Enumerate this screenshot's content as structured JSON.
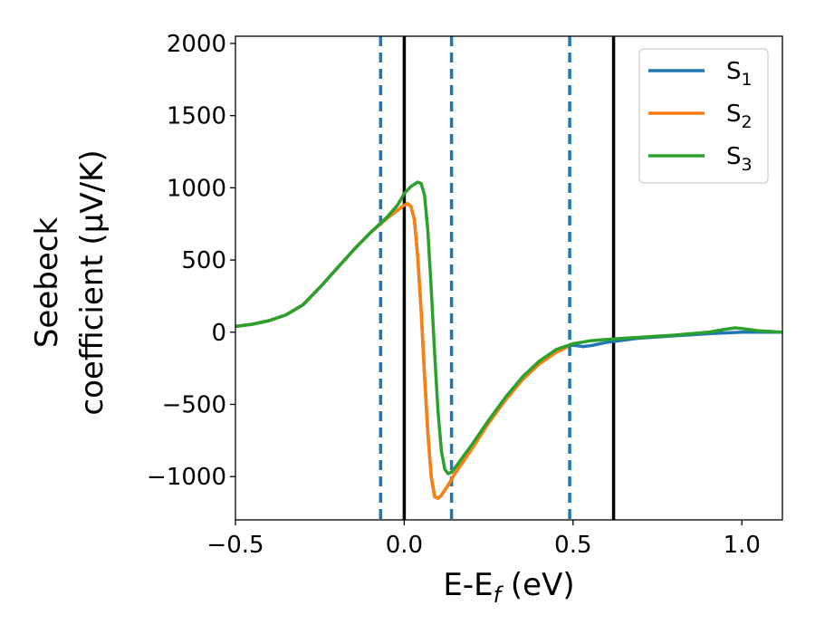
{
  "chart_data": {
    "type": "line",
    "xlabel": "E-E",
    "xlabel_sub": "f",
    "xlabel_unit": " (eV)",
    "ylabel_line1": "Seebeck",
    "ylabel_line2": "coefficient  (μV/K)",
    "xlim": [
      -0.5,
      1.12
    ],
    "ylim": [
      -1300,
      2050
    ],
    "xticks": [
      -0.5,
      0.0,
      0.5,
      1.0
    ],
    "xtick_labels": [
      "−0.5",
      "0.0",
      "0.5",
      "1.0"
    ],
    "yticks": [
      -1000,
      -500,
      0,
      500,
      1000,
      1500,
      2000
    ],
    "ytick_labels": [
      "−1000",
      "−500",
      "0",
      "500",
      "1000",
      "1500",
      "2000"
    ],
    "legend_position": "top-right",
    "grid": false,
    "vlines_solid": [
      0.0,
      0.62
    ],
    "vlines_dashed": [
      -0.07,
      0.14,
      0.49
    ],
    "series": [
      {
        "name": "S",
        "name_sub": "1",
        "color": "#1f77b4",
        "points": [
          [
            -0.5,
            40
          ],
          [
            -0.45,
            55
          ],
          [
            -0.4,
            80
          ],
          [
            -0.35,
            120
          ],
          [
            -0.3,
            190
          ],
          [
            -0.25,
            310
          ],
          [
            -0.2,
            440
          ],
          [
            -0.15,
            570
          ],
          [
            -0.1,
            690
          ],
          [
            -0.05,
            790
          ],
          [
            -0.02,
            845
          ],
          [
            0.0,
            880
          ],
          [
            0.01,
            890
          ],
          [
            0.02,
            870
          ],
          [
            0.03,
            780
          ],
          [
            0.04,
            520
          ],
          [
            0.05,
            150
          ],
          [
            0.06,
            -300
          ],
          [
            0.07,
            -700
          ],
          [
            0.08,
            -1000
          ],
          [
            0.09,
            -1140
          ],
          [
            0.1,
            -1150
          ],
          [
            0.11,
            -1130
          ],
          [
            0.13,
            -1060
          ],
          [
            0.15,
            -980
          ],
          [
            0.2,
            -800
          ],
          [
            0.25,
            -620
          ],
          [
            0.3,
            -460
          ],
          [
            0.35,
            -320
          ],
          [
            0.4,
            -210
          ],
          [
            0.45,
            -130
          ],
          [
            0.48,
            -100
          ],
          [
            0.5,
            -90
          ],
          [
            0.53,
            -100
          ],
          [
            0.56,
            -90
          ],
          [
            0.6,
            -70
          ],
          [
            0.65,
            -55
          ],
          [
            0.7,
            -40
          ],
          [
            0.8,
            -25
          ],
          [
            0.9,
            -10
          ],
          [
            1.0,
            0
          ],
          [
            1.12,
            0
          ]
        ]
      },
      {
        "name": "S",
        "name_sub": "2",
        "color": "#ff7f0e",
        "points": [
          [
            -0.5,
            40
          ],
          [
            -0.45,
            55
          ],
          [
            -0.4,
            80
          ],
          [
            -0.35,
            120
          ],
          [
            -0.3,
            190
          ],
          [
            -0.25,
            310
          ],
          [
            -0.2,
            440
          ],
          [
            -0.15,
            570
          ],
          [
            -0.1,
            690
          ],
          [
            -0.05,
            790
          ],
          [
            -0.02,
            845
          ],
          [
            0.0,
            880
          ],
          [
            0.01,
            890
          ],
          [
            0.02,
            870
          ],
          [
            0.03,
            780
          ],
          [
            0.04,
            520
          ],
          [
            0.05,
            150
          ],
          [
            0.06,
            -300
          ],
          [
            0.07,
            -700
          ],
          [
            0.08,
            -1000
          ],
          [
            0.09,
            -1140
          ],
          [
            0.1,
            -1150
          ],
          [
            0.11,
            -1130
          ],
          [
            0.13,
            -1060
          ],
          [
            0.15,
            -980
          ],
          [
            0.2,
            -810
          ],
          [
            0.25,
            -630
          ],
          [
            0.3,
            -470
          ],
          [
            0.35,
            -330
          ],
          [
            0.4,
            -220
          ],
          [
            0.45,
            -140
          ],
          [
            0.48,
            -105
          ]
        ]
      },
      {
        "name": "S",
        "name_sub": "3",
        "color": "#2ca02c",
        "points": [
          [
            -0.5,
            40
          ],
          [
            -0.45,
            55
          ],
          [
            -0.4,
            80
          ],
          [
            -0.35,
            120
          ],
          [
            -0.3,
            190
          ],
          [
            -0.25,
            310
          ],
          [
            -0.2,
            440
          ],
          [
            -0.15,
            570
          ],
          [
            -0.1,
            690
          ],
          [
            -0.05,
            800
          ],
          [
            -0.02,
            880
          ],
          [
            0.0,
            960
          ],
          [
            0.02,
            1010
          ],
          [
            0.04,
            1040
          ],
          [
            0.05,
            1030
          ],
          [
            0.06,
            950
          ],
          [
            0.07,
            700
          ],
          [
            0.08,
            300
          ],
          [
            0.09,
            -150
          ],
          [
            0.1,
            -550
          ],
          [
            0.11,
            -820
          ],
          [
            0.12,
            -950
          ],
          [
            0.13,
            -980
          ],
          [
            0.14,
            -970
          ],
          [
            0.15,
            -940
          ],
          [
            0.2,
            -780
          ],
          [
            0.25,
            -610
          ],
          [
            0.3,
            -450
          ],
          [
            0.35,
            -310
          ],
          [
            0.4,
            -200
          ],
          [
            0.45,
            -120
          ],
          [
            0.5,
            -80
          ],
          [
            0.55,
            -60
          ],
          [
            0.6,
            -50
          ],
          [
            0.65,
            -42
          ],
          [
            0.7,
            -35
          ],
          [
            0.8,
            -20
          ],
          [
            0.9,
            0
          ],
          [
            0.95,
            20
          ],
          [
            0.98,
            30
          ],
          [
            1.0,
            25
          ],
          [
            1.05,
            10
          ],
          [
            1.12,
            0
          ]
        ]
      }
    ]
  }
}
